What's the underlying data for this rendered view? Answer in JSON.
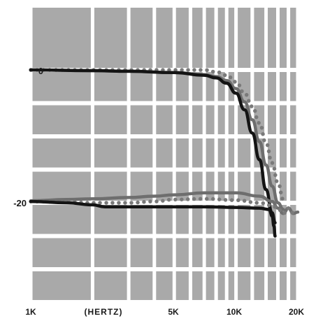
{
  "chart_data": {
    "type": "line",
    "title": "",
    "xlabel": "(HERTZ)",
    "ylabel": "",
    "x_scale": "log",
    "xlim": [
      1000,
      20000
    ],
    "ylim": [
      -30,
      2
    ],
    "x_ticks": [
      {
        "value": 1000,
        "label": "1K"
      },
      {
        "value": 5000,
        "label": "5K"
      },
      {
        "value": 10000,
        "label": "10K"
      },
      {
        "value": 20000,
        "label": "20K"
      }
    ],
    "y_ticks": [
      {
        "value": 0,
        "label": "0"
      },
      {
        "value": -20,
        "label": "-20"
      }
    ],
    "grid": true,
    "colors": {
      "background": "#ffffff",
      "grid_cell": "#a9a9a9",
      "black": "#141414",
      "gray": "#6e6e6e",
      "dotted": "#7a7a7a"
    },
    "series": [
      {
        "style": "dotted",
        "color": "#7a7a7a",
        "x": [
          1000,
          2000,
          3000,
          5000,
          7000,
          8000,
          9000,
          10000,
          11000,
          12000,
          13000,
          14000,
          15000,
          16000,
          17000
        ],
        "y": [
          0,
          0,
          0,
          0,
          0,
          -0.3,
          -0.8,
          -1.8,
          -3.5,
          -5.5,
          -8,
          -11,
          -14,
          -17,
          -19.5
        ]
      },
      {
        "style": "solid",
        "color": "#6e6e6e",
        "x": [
          1000,
          2000,
          3000,
          5000,
          7000,
          8000,
          9000,
          10000,
          11000,
          12000,
          13000,
          14000,
          15000,
          16000,
          17000
        ],
        "y": [
          0,
          -0.1,
          -0.2,
          -0.4,
          -0.7,
          -1,
          -1.6,
          -2.8,
          -4.8,
          -7.5,
          -10.8,
          -14.3,
          -17.5,
          -20,
          -21
        ]
      },
      {
        "style": "solid",
        "color": "#141414",
        "x": [
          1000,
          2000,
          3000,
          5000,
          7000,
          8000,
          9000,
          10000,
          11000,
          12000,
          13000,
          14000,
          15000,
          15500
        ],
        "y": [
          0,
          -0.1,
          -0.2,
          -0.4,
          -0.8,
          -1.2,
          -2,
          -3.5,
          -6,
          -9.5,
          -13.5,
          -18,
          -21.5,
          -23
        ]
      },
      {
        "style": "solid",
        "color": "#6e6e6e",
        "x": [
          1000,
          1500,
          2000,
          3000,
          4000,
          5000,
          7000,
          10000,
          13000,
          15000,
          16000,
          17000,
          18000,
          19000,
          20000
        ],
        "y": [
          -19.7,
          -19.5,
          -19.4,
          -19.2,
          -19,
          -18.8,
          -18.5,
          -18.5,
          -19,
          -19.8,
          -20.8,
          -21.6,
          -20.8,
          -21.6,
          -21.4
        ]
      },
      {
        "style": "dotted",
        "color": "#7a7a7a",
        "x": [
          1000,
          1500,
          2000,
          3000,
          4000,
          5000,
          7000,
          10000,
          13000,
          15000,
          16000,
          17000,
          18000,
          19000,
          20000
        ],
        "y": [
          -19.8,
          -19.9,
          -20,
          -20,
          -19.8,
          -19.5,
          -19.4,
          -19.6,
          -20,
          -20.4,
          -20.9,
          -21.6,
          -20.8,
          -21.5,
          -21.3
        ]
      },
      {
        "style": "solid",
        "color": "#141414",
        "x": [
          1000,
          1500,
          2000,
          2300,
          3000,
          5000,
          7000,
          10000,
          13000,
          14500,
          15000,
          15300,
          15500
        ],
        "y": [
          -19.8,
          -20,
          -20.3,
          -20.6,
          -20.6,
          -20.6,
          -20.6,
          -20.7,
          -20.8,
          -21,
          -22,
          -23.5,
          -25
        ]
      }
    ]
  }
}
